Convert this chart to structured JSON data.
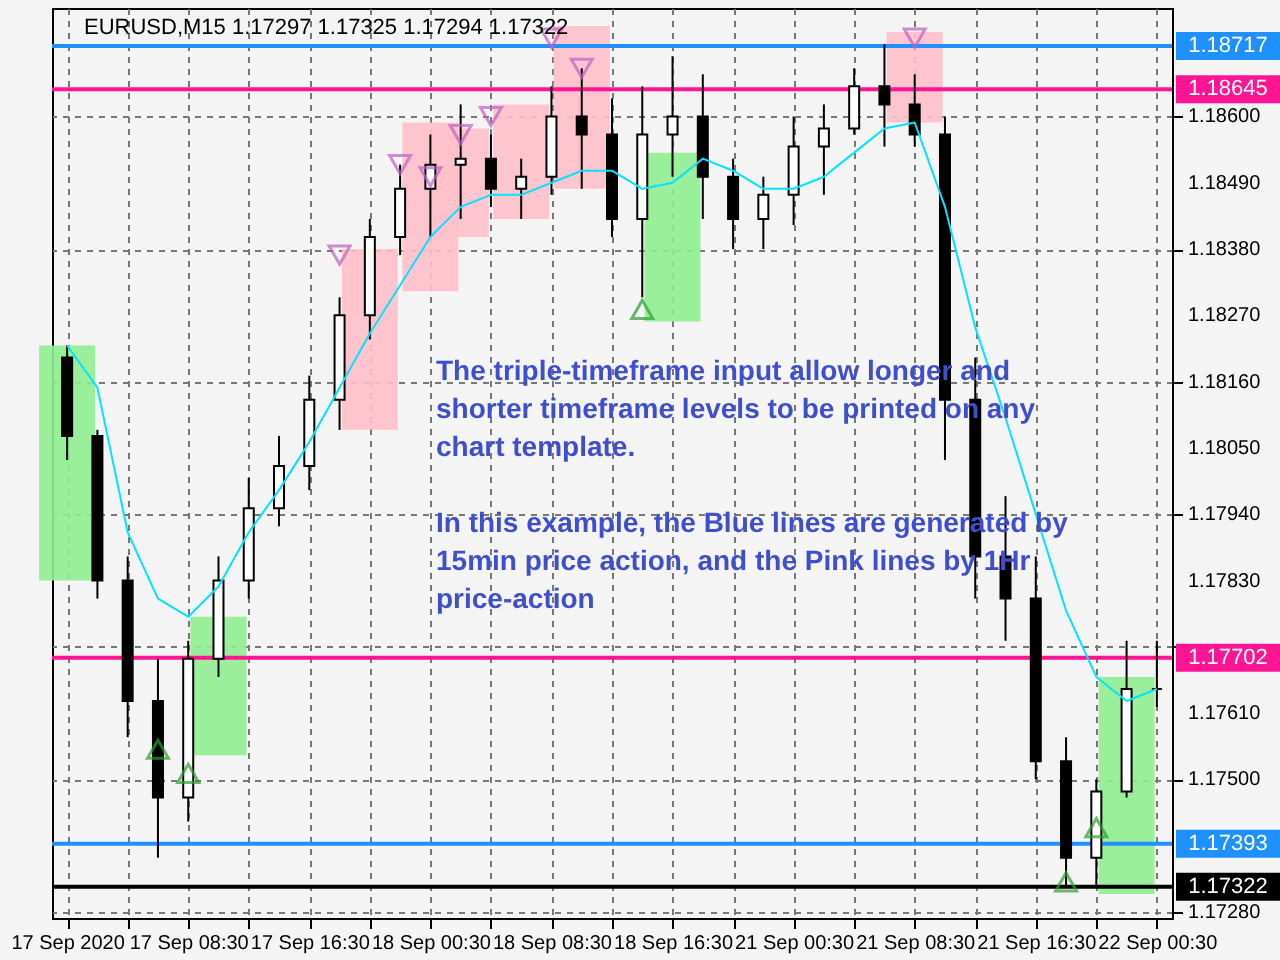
{
  "chart_data": {
    "type": "candlestick",
    "title": "EURUSD,M15 1.17297 1.17325 1.17294 1.17322",
    "categories": [
      "17 Sep 2020",
      null,
      null,
      null,
      "17 Sep 08:30",
      null,
      null,
      null,
      "17 Sep 16:30",
      null,
      null,
      null,
      "18 Sep 00:30",
      null,
      null,
      null,
      "18 Sep 08:30",
      null,
      null,
      null,
      "18 Sep 16:30",
      null,
      null,
      null,
      "21 Sep 00:30",
      null,
      null,
      null,
      "21 Sep 08:30",
      null,
      null,
      null,
      "21 Sep 16:30",
      null,
      null,
      null,
      "22 Sep 00:30"
    ],
    "ohlc": [
      [
        1.182,
        1.1822,
        1.1803,
        1.1807
      ],
      [
        1.1807,
        1.1808,
        1.178,
        1.1783
      ],
      [
        1.1783,
        1.1787,
        1.1757,
        1.1763
      ],
      [
        1.1763,
        1.177,
        1.1737,
        1.1747
      ],
      [
        1.1747,
        1.1773,
        1.1743,
        1.177
      ],
      [
        1.177,
        1.1787,
        1.1767,
        1.1783
      ],
      [
        1.1783,
        1.18,
        1.178,
        1.1795
      ],
      [
        1.1795,
        1.1807,
        1.1792,
        1.1802
      ],
      [
        1.1802,
        1.1817,
        1.1798,
        1.1813
      ],
      [
        1.1813,
        1.183,
        1.1808,
        1.1827
      ],
      [
        1.1827,
        1.1843,
        1.1823,
        1.184
      ],
      [
        1.184,
        1.1852,
        1.1837,
        1.1848
      ],
      [
        1.1848,
        1.1857,
        1.184,
        1.1852
      ],
      [
        1.1852,
        1.1862,
        1.1843,
        1.1853
      ],
      [
        1.1853,
        1.1857,
        1.1845,
        1.1848
      ],
      [
        1.1848,
        1.1853,
        1.1843,
        1.185
      ],
      [
        1.185,
        1.1865,
        1.1847,
        1.186
      ],
      [
        1.186,
        1.1868,
        1.1848,
        1.1857
      ],
      [
        1.1857,
        1.1863,
        1.184,
        1.1843
      ],
      [
        1.1843,
        1.1865,
        1.183,
        1.1857
      ],
      [
        1.1857,
        1.187,
        1.185,
        1.186
      ],
      [
        1.186,
        1.1867,
        1.1843,
        1.185
      ],
      [
        1.185,
        1.1853,
        1.1838,
        1.1843
      ],
      [
        1.1843,
        1.185,
        1.1838,
        1.1847
      ],
      [
        1.1847,
        1.186,
        1.1842,
        1.1855
      ],
      [
        1.1855,
        1.1862,
        1.1847,
        1.1858
      ],
      [
        1.1858,
        1.1868,
        1.1857,
        1.1865
      ],
      [
        1.1865,
        1.1872,
        1.1855,
        1.1862
      ],
      [
        1.1862,
        1.1867,
        1.1855,
        1.1857
      ],
      [
        1.1857,
        1.186,
        1.1803,
        1.1813
      ],
      [
        1.1813,
        1.182,
        1.178,
        1.1787
      ],
      [
        1.1787,
        1.1797,
        1.1773,
        1.178
      ],
      [
        1.178,
        1.1787,
        1.175,
        1.1753
      ],
      [
        1.1753,
        1.1757,
        1.1732,
        1.1737
      ],
      [
        1.1737,
        1.175,
        1.1732,
        1.1748
      ],
      [
        1.1748,
        1.1773,
        1.1747,
        1.1765
      ],
      [
        1.1765,
        1.1773,
        1.1762,
        1.1765
      ]
    ],
    "series": [
      {
        "type": "bar",
        "color": "#ffc0cb",
        "base": [
          null,
          null,
          null,
          null,
          null,
          null,
          null,
          null,
          null,
          null,
          1.1808,
          null,
          1.1831,
          1.184,
          null,
          1.1843,
          null,
          1.1848,
          null,
          null,
          null,
          null,
          null,
          null,
          null,
          null,
          null,
          null,
          1.1859,
          null,
          null,
          null,
          null,
          null,
          null,
          null,
          null
        ],
        "values": [
          null,
          null,
          null,
          null,
          null,
          null,
          null,
          null,
          null,
          null,
          0.003,
          null,
          0.0028,
          0.0018,
          null,
          0.0019,
          null,
          0.0027,
          null,
          null,
          null,
          null,
          null,
          null,
          null,
          null,
          null,
          null,
          0.0015,
          null,
          null,
          null,
          null,
          null,
          null,
          null,
          null
        ]
      },
      {
        "type": "bar",
        "color": "#90ee90",
        "base": [
          1.1783,
          null,
          null,
          null,
          null,
          1.1754,
          null,
          null,
          null,
          null,
          null,
          null,
          null,
          null,
          null,
          null,
          null,
          null,
          null,
          null,
          1.1826,
          null,
          null,
          null,
          null,
          null,
          null,
          null,
          null,
          null,
          null,
          null,
          null,
          null,
          null,
          1.1731,
          null
        ],
        "values": [
          0.0039,
          null,
          null,
          null,
          null,
          0.0023,
          null,
          null,
          null,
          null,
          null,
          null,
          null,
          null,
          null,
          null,
          null,
          null,
          null,
          null,
          0.0028,
          null,
          null,
          null,
          null,
          null,
          null,
          null,
          null,
          null,
          null,
          null,
          null,
          null,
          null,
          0.0036,
          null
        ]
      },
      {
        "type": "line",
        "color": "#00e5ff",
        "values": [
          1.1822,
          1.1815,
          1.1791,
          1.178,
          1.1777,
          1.1782,
          1.1791,
          1.1798,
          1.1806,
          1.1815,
          1.1824,
          1.1832,
          1.184,
          1.1845,
          1.1847,
          1.1847,
          1.1849,
          1.1851,
          1.1851,
          1.1848,
          1.1849,
          1.1853,
          1.1851,
          1.1848,
          1.1848,
          1.185,
          1.1854,
          1.1858,
          1.1859,
          1.1845,
          1.1825,
          1.181,
          1.1794,
          1.1778,
          1.1767,
          1.1763,
          1.1765
        ]
      },
      {
        "type": "scatter",
        "marker": "triangle-down",
        "color": "#c060c0",
        "values": [
          null,
          null,
          null,
          null,
          null,
          null,
          null,
          null,
          null,
          1.1837,
          null,
          1.1852,
          1.185,
          1.1857,
          1.186,
          null,
          1.1873,
          1.1868,
          null,
          null,
          null,
          null,
          null,
          null,
          null,
          null,
          null,
          null,
          1.1873,
          null,
          null,
          null,
          null,
          null,
          null,
          null,
          null
        ]
      },
      {
        "type": "scatter",
        "marker": "triangle",
        "color": "#2e9e2e",
        "values": [
          null,
          null,
          null,
          1.1755,
          1.1751,
          null,
          null,
          null,
          null,
          null,
          null,
          null,
          null,
          null,
          null,
          null,
          null,
          null,
          null,
          1.1828,
          null,
          null,
          null,
          null,
          null,
          null,
          null,
          null,
          null,
          null,
          null,
          null,
          null,
          1.1733,
          1.1742,
          null,
          null
        ]
      }
    ],
    "ref_lines": [
      {
        "axis": "y",
        "value": 1.18717,
        "label": "1.18717",
        "color": "#1e90ff"
      },
      {
        "axis": "y",
        "value": 1.18645,
        "label": "1.18645",
        "color": "#ff1493"
      },
      {
        "axis": "y",
        "value": 1.17702,
        "label": "1.17702",
        "color": "#ff1493"
      },
      {
        "axis": "y",
        "value": 1.17393,
        "label": "1.17393",
        "color": "#1e90ff"
      },
      {
        "axis": "y",
        "value": 1.17322,
        "label": "1.17322",
        "color": "#000000"
      }
    ],
    "annotations": [
      "The triple-timeframe input allow longer and shorter timeframe levels to be printed on any chart template.",
      "In this example, the Blue lines are generated by 15min price action, and the Pink lines by 1Hr price-action"
    ],
    "ylim": [
      1.1727,
      1.1878
    ],
    "yticks": [
      {
        "value": 1.1728,
        "label": "1.17280"
      },
      {
        "value": 1.1739,
        "label": null
      },
      {
        "value": 1.175,
        "label": "1.17500"
      },
      {
        "value": 1.1761,
        "label": "1.17610"
      },
      {
        "value": 1.1772,
        "label": null
      },
      {
        "value": 1.1783,
        "label": "1.17830"
      },
      {
        "value": 1.1794,
        "label": "1.17940"
      },
      {
        "value": 1.1805,
        "label": "1.18050"
      },
      {
        "value": 1.1816,
        "label": "1.18160"
      },
      {
        "value": 1.1827,
        "label": "1.18270"
      },
      {
        "value": 1.1838,
        "label": "1.18380"
      },
      {
        "value": 1.1849,
        "label": "1.18490"
      },
      {
        "value": 1.186,
        "label": "1.18600"
      }
    ],
    "grid": true
  }
}
